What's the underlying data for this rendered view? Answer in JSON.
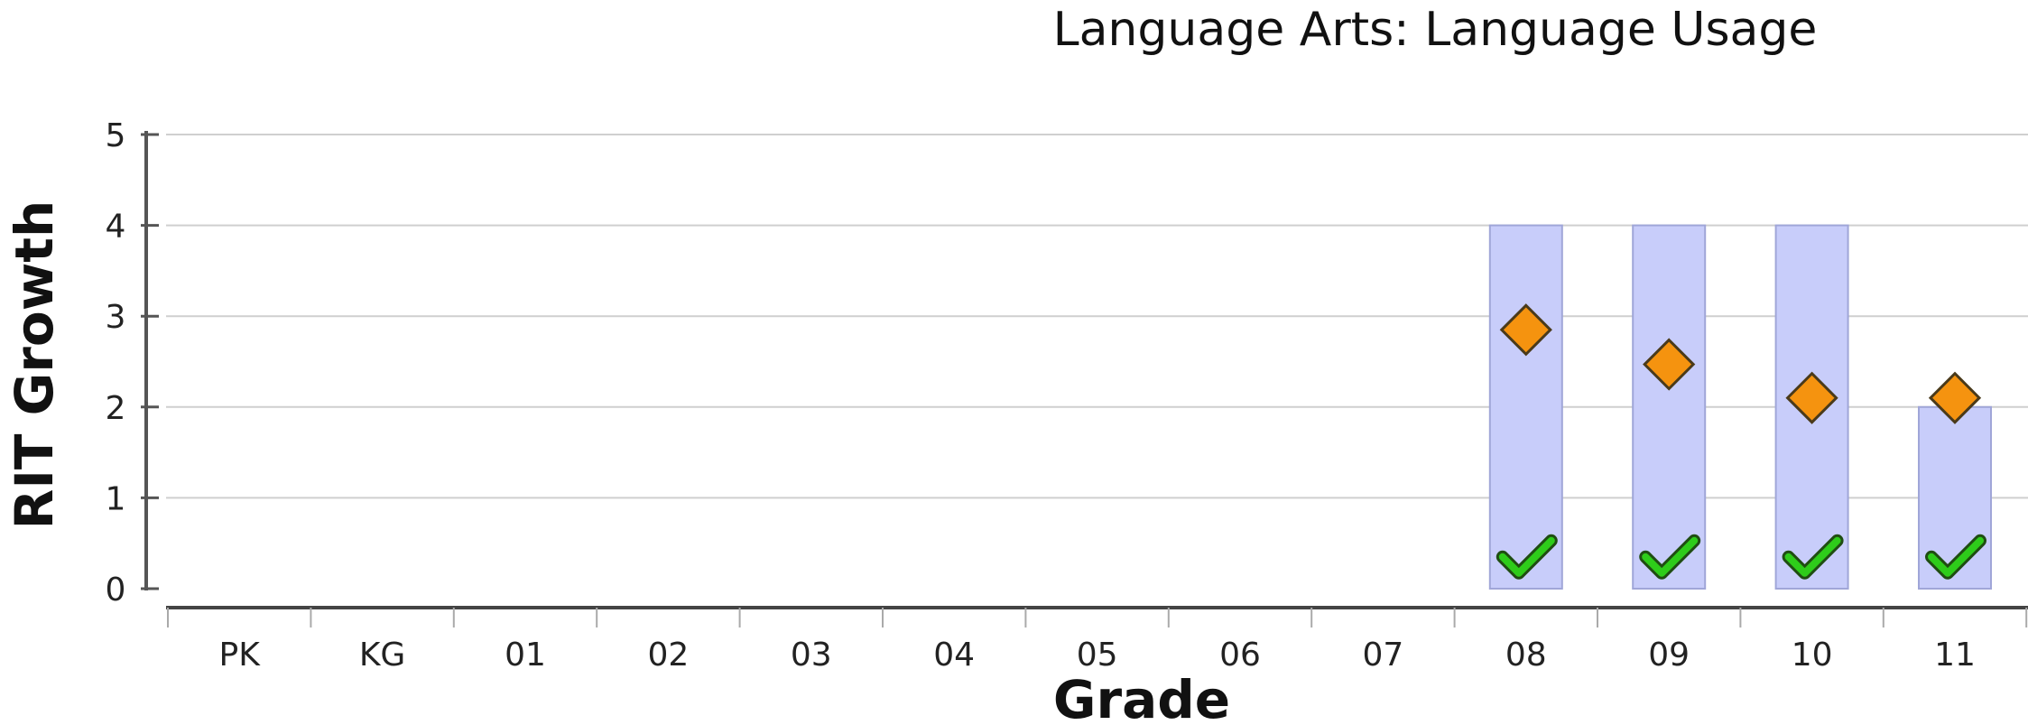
{
  "chart_data": {
    "type": "bar",
    "title": "Language Arts: Language Usage",
    "xlabel": "Grade",
    "ylabel": "RIT Growth",
    "ylim": [
      0,
      5
    ],
    "yticks": [
      "0",
      "1",
      "2",
      "3",
      "4",
      "5"
    ],
    "categories": [
      "PK",
      "KG",
      "01",
      "02",
      "03",
      "04",
      "05",
      "06",
      "07",
      "08",
      "09",
      "10",
      "11"
    ],
    "grid": true,
    "series": [
      {
        "kind": "bar",
        "color": "#c8cdfa",
        "values": [
          null,
          null,
          null,
          null,
          null,
          null,
          null,
          null,
          null,
          4,
          4,
          4,
          2
        ]
      },
      {
        "kind": "diamond-marker",
        "color": "#f5930f",
        "values": [
          null,
          null,
          null,
          null,
          null,
          null,
          null,
          null,
          null,
          2.85,
          2.47,
          2.1,
          2.1
        ]
      },
      {
        "kind": "check-marker",
        "icon": "checkmark-icon",
        "color": "#2ecc1a",
        "values": [
          null,
          null,
          null,
          null,
          null,
          null,
          null,
          null,
          null,
          0.33,
          0.33,
          0.33,
          0.33
        ]
      }
    ]
  }
}
